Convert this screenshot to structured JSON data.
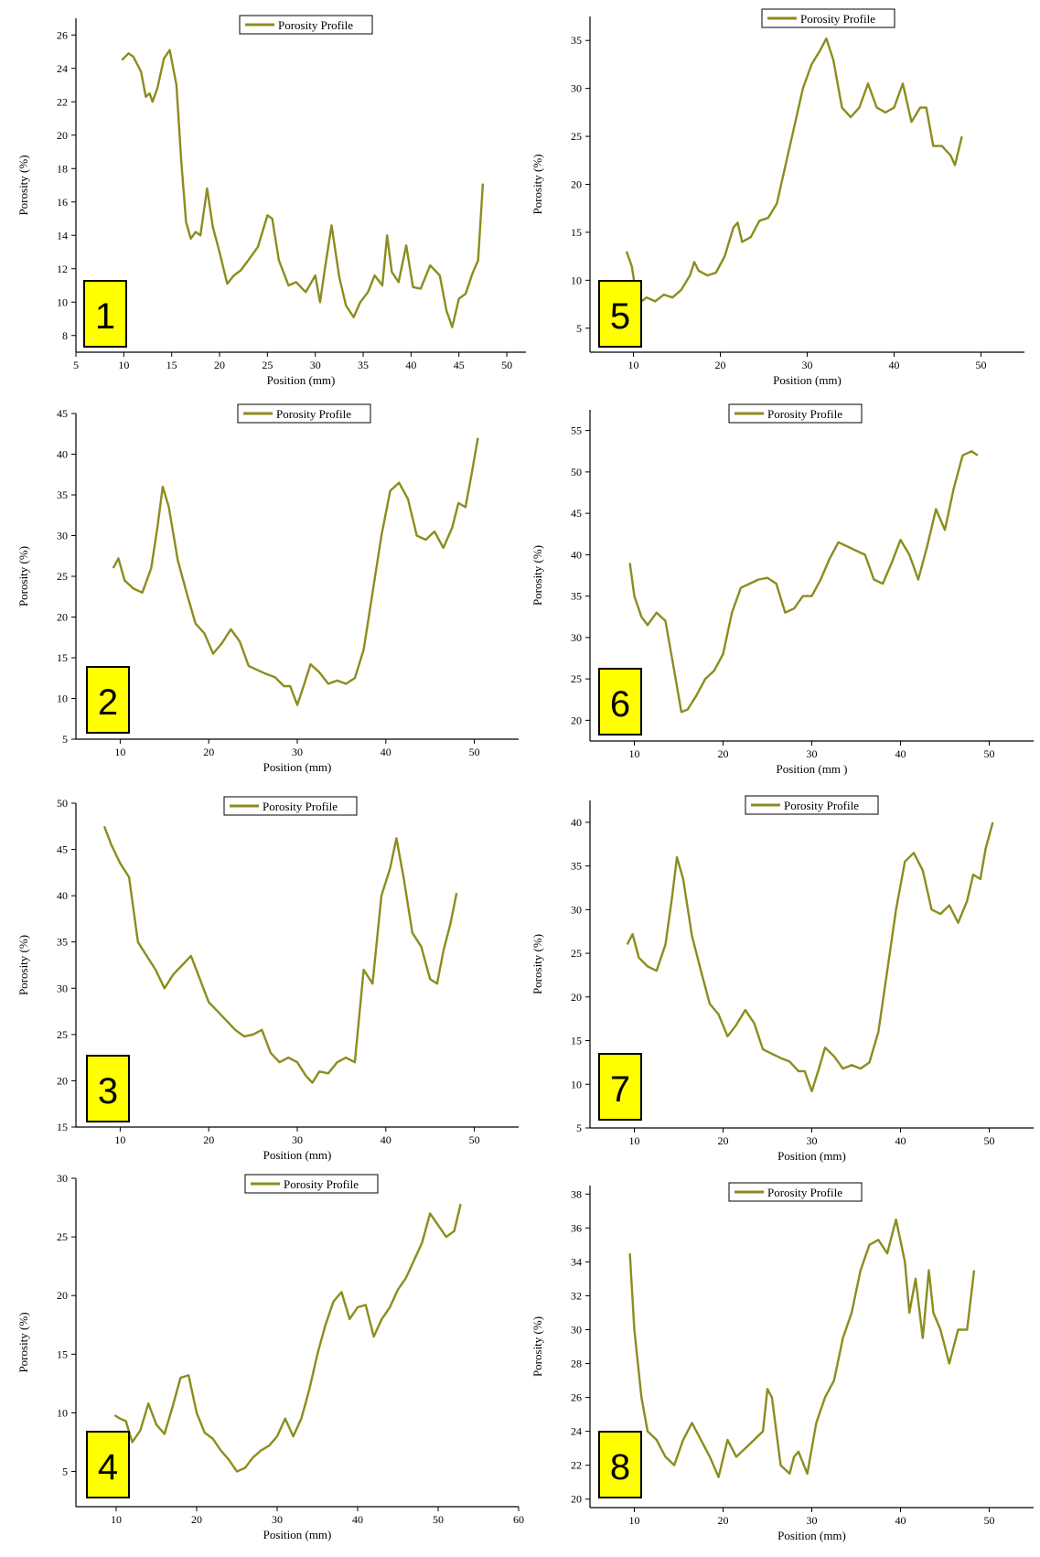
{
  "colors": {
    "line": "#8c8c1e",
    "badge": "#ffff00",
    "axis": "#000000"
  },
  "chart_data": [
    {
      "type": "line",
      "panel_label": "1",
      "xlabel": "Position (mm)",
      "ylabel": "Porosity (%)",
      "xlim": [
        5,
        52
      ],
      "ylim": [
        7,
        27
      ],
      "xticks": [
        5,
        10,
        15,
        20,
        25,
        30,
        35,
        40,
        45,
        50
      ],
      "yticks": [
        8,
        10,
        12,
        14,
        16,
        18,
        20,
        22,
        24,
        26
      ],
      "series": [
        {
          "name": "Porosity Profile",
          "x": [
            9.8,
            10.5,
            11.0,
            11.8,
            12.3,
            12.7,
            13.0,
            13.5,
            14.2,
            14.8,
            15.5,
            16.0,
            16.5,
            17.0,
            17.5,
            18.0,
            18.7,
            19.3,
            20.0,
            20.8,
            21.5,
            22.2,
            23.0,
            24.0,
            25.0,
            25.5,
            26.2,
            27.2,
            28.0,
            29.0,
            30.0,
            30.5,
            31.0,
            31.7,
            32.5,
            33.2,
            34.0,
            34.7,
            35.5,
            36.2,
            37.0,
            37.5,
            38.0,
            38.7,
            39.5,
            40.2,
            41.0,
            42.0,
            43.0,
            43.7,
            44.3,
            45.0,
            45.7,
            46.4,
            47.0,
            47.5
          ],
          "y": [
            24.5,
            24.9,
            24.7,
            23.8,
            22.3,
            22.5,
            22.0,
            22.8,
            24.6,
            25.1,
            23.0,
            18.5,
            14.8,
            13.8,
            14.2,
            14.0,
            16.8,
            14.5,
            13.0,
            11.1,
            11.6,
            11.9,
            12.5,
            13.3,
            15.2,
            15.0,
            12.5,
            11.0,
            11.2,
            10.6,
            11.6,
            10.0,
            12.0,
            14.6,
            11.5,
            9.8,
            9.1,
            10.0,
            10.6,
            11.6,
            11.0,
            14.0,
            11.8,
            11.2,
            13.4,
            10.9,
            10.8,
            12.2,
            11.6,
            9.5,
            8.5,
            10.2,
            10.5,
            11.7,
            12.5,
            17.1
          ]
        }
      ]
    },
    {
      "type": "line",
      "panel_label": "2",
      "xlabel": "Position (mm)",
      "ylabel": "Porosity (%)",
      "xlim": [
        5,
        55
      ],
      "ylim": [
        5,
        45
      ],
      "xticks": [
        10,
        20,
        30,
        40,
        50
      ],
      "yticks": [
        5,
        10,
        15,
        20,
        25,
        30,
        35,
        40,
        45
      ],
      "series": [
        {
          "name": "Porosity Profile",
          "x": [
            9.2,
            9.8,
            10.5,
            11.5,
            12.5,
            13.5,
            14.2,
            14.8,
            15.5,
            16.5,
            17.5,
            18.5,
            19.5,
            20.5,
            21.5,
            22.5,
            23.5,
            24.5,
            25.5,
            26.5,
            27.5,
            28.5,
            29.2,
            30.0,
            30.8,
            31.5,
            32.5,
            33.5,
            34.5,
            35.5,
            36.5,
            37.5,
            38.5,
            39.5,
            40.5,
            41.5,
            42.5,
            43.5,
            44.5,
            45.5,
            46.5,
            47.5,
            48.2,
            49.0,
            49.6,
            50.4
          ],
          "y": [
            26,
            27.2,
            24.5,
            23.5,
            23.0,
            26,
            31,
            36,
            33.5,
            27,
            23,
            19.2,
            18,
            15.5,
            16.8,
            18.5,
            17,
            14,
            13.5,
            13,
            12.6,
            11.5,
            11.5,
            9.2,
            11.8,
            14.2,
            13.2,
            11.8,
            12.2,
            11.8,
            12.5,
            16,
            23,
            30,
            35.5,
            36.5,
            34.5,
            30,
            29.5,
            30.5,
            28.5,
            31,
            34,
            33.5,
            37,
            42
          ]
        }
      ]
    },
    {
      "type": "line",
      "panel_label": "3",
      "xlabel": "Position (mm)",
      "ylabel": "Porosity (%)",
      "xlim": [
        5,
        55
      ],
      "ylim": [
        15,
        50
      ],
      "xticks": [
        10,
        20,
        30,
        40,
        50
      ],
      "yticks": [
        15,
        20,
        25,
        30,
        35,
        40,
        45,
        50
      ],
      "series": [
        {
          "name": "Porosity Profile",
          "x": [
            8.2,
            9.0,
            10.0,
            11.0,
            12.0,
            13.0,
            14.0,
            15.0,
            16.0,
            17.0,
            18.0,
            19.0,
            20.0,
            21.0,
            22.0,
            23.0,
            24.0,
            25.0,
            26.0,
            27.0,
            28.0,
            29.0,
            30.0,
            31.0,
            31.7,
            32.5,
            33.5,
            34.5,
            35.5,
            36.5,
            37.5,
            38.5,
            39.5,
            40.5,
            41.2,
            42.0,
            43.0,
            44.0,
            45.0,
            45.8,
            46.5,
            47.3,
            48.0
          ],
          "y": [
            47.5,
            45.5,
            43.5,
            42,
            35,
            33.5,
            32,
            30,
            31.5,
            32.5,
            33.5,
            31,
            28.5,
            27.5,
            26.5,
            25.5,
            24.8,
            25,
            25.5,
            23,
            22,
            22.5,
            22,
            20.5,
            19.8,
            21,
            20.8,
            22,
            22.5,
            22,
            32,
            30.5,
            40,
            43,
            46.2,
            42,
            36,
            34.5,
            31,
            30.5,
            34,
            37,
            40.3
          ]
        }
      ]
    },
    {
      "type": "line",
      "panel_label": "4",
      "xlabel": "Position (mm)",
      "ylabel": "Porosity (%)",
      "xlim": [
        5,
        60
      ],
      "ylim": [
        2,
        30
      ],
      "xticks": [
        10,
        20,
        30,
        40,
        50,
        60
      ],
      "yticks": [
        5,
        10,
        15,
        20,
        25,
        30
      ],
      "series": [
        {
          "name": "Porosity Profile",
          "x": [
            9.8,
            10.5,
            11.2,
            12.0,
            13.0,
            14.0,
            15.0,
            16.0,
            17.0,
            18.0,
            19.0,
            20.0,
            21.0,
            22.0,
            23.0,
            24.0,
            25.0,
            26.0,
            27.0,
            28.0,
            29.0,
            30.0,
            31.0,
            32.0,
            33.0,
            34.0,
            35.0,
            36.0,
            37.0,
            38.0,
            39.0,
            40.0,
            41.0,
            42.0,
            43.0,
            44.0,
            45.0,
            46.0,
            47.0,
            48.0,
            49.0,
            50.0,
            51.0,
            52.0,
            52.8
          ],
          "y": [
            9.8,
            9.5,
            9.3,
            7.5,
            8.5,
            10.8,
            9.0,
            8.2,
            10.5,
            13.0,
            13.2,
            10.0,
            8.3,
            7.8,
            6.8,
            6.0,
            5.0,
            5.3,
            6.2,
            6.8,
            7.2,
            8.0,
            9.5,
            8.0,
            9.5,
            12,
            15,
            17.5,
            19.5,
            20.3,
            18,
            19,
            19.2,
            16.5,
            18,
            19,
            20.5,
            21.5,
            23,
            24.5,
            27,
            26,
            25,
            25.5,
            27.8
          ]
        }
      ]
    },
    {
      "type": "line",
      "panel_label": "5",
      "xlabel": "Position (mm)",
      "ylabel": "Porosity (%)",
      "xlim": [
        5,
        55
      ],
      "ylim": [
        2.5,
        37.5
      ],
      "xticks": [
        10,
        20,
        30,
        40,
        50
      ],
      "yticks": [
        5,
        10,
        15,
        20,
        25,
        30,
        35
      ],
      "series": [
        {
          "name": "Porosity Profile",
          "x": [
            9.2,
            9.8,
            10.5,
            11.5,
            12.5,
            13.5,
            14.5,
            15.5,
            16.5,
            17.0,
            17.5,
            18.5,
            19.5,
            20.5,
            21.5,
            22.0,
            22.5,
            23.5,
            24.5,
            25.5,
            26.5,
            27.5,
            28.5,
            29.5,
            30.5,
            31.5,
            32.2,
            33.0,
            34.0,
            35.0,
            36.0,
            37.0,
            38.0,
            39.0,
            40.0,
            41.0,
            42.0,
            43.0,
            43.7,
            44.5,
            45.5,
            46.5,
            47.0,
            47.8
          ],
          "y": [
            13,
            11.5,
            7.5,
            8.2,
            7.8,
            8.5,
            8.2,
            9.0,
            10.5,
            11.9,
            11.0,
            10.5,
            10.8,
            12.5,
            15.5,
            16,
            14,
            14.5,
            16.2,
            16.5,
            18,
            22,
            26,
            30,
            32.5,
            34,
            35.2,
            33,
            28,
            27,
            28,
            30.5,
            28,
            27.5,
            28,
            30.5,
            26.5,
            28,
            28,
            24,
            24,
            23,
            22,
            25
          ]
        }
      ]
    },
    {
      "type": "line",
      "panel_label": "6",
      "xlabel": "Position (mm )",
      "ylabel": "Porosity (%)",
      "xlim": [
        5,
        55
      ],
      "ylim": [
        17.5,
        57.5
      ],
      "xticks": [
        10,
        20,
        30,
        40,
        50
      ],
      "yticks": [
        20,
        25,
        30,
        35,
        40,
        45,
        50,
        55
      ],
      "series": [
        {
          "name": "Porosity Profile",
          "x": [
            9.5,
            10.0,
            10.8,
            11.5,
            12.5,
            13.5,
            14.5,
            15.3,
            16.0,
            17.0,
            18.0,
            19.0,
            20.0,
            21.0,
            22.0,
            23.0,
            24.0,
            25.0,
            26.0,
            27.0,
            28.0,
            29.0,
            30.0,
            31.0,
            32.0,
            33.0,
            34.0,
            35.0,
            36.0,
            37.0,
            38.0,
            39.0,
            40.0,
            41.0,
            42.0,
            43.0,
            44.0,
            45.0,
            46.0,
            47.0,
            48.0,
            48.7
          ],
          "y": [
            39,
            35,
            32.5,
            31.5,
            33,
            32,
            26,
            21,
            21.3,
            23,
            25,
            26,
            28,
            33,
            36,
            36.5,
            37,
            37.2,
            36.5,
            33,
            33.5,
            35,
            35,
            37,
            39.5,
            41.5,
            41,
            40.5,
            40,
            37,
            36.5,
            39,
            41.8,
            40,
            37,
            41,
            45.5,
            43,
            48,
            52,
            52.5,
            52
          ]
        }
      ]
    },
    {
      "type": "line",
      "panel_label": "7",
      "xlabel": "Position (mm)",
      "ylabel": "Porosity (%)",
      "xlim": [
        5,
        55
      ],
      "ylim": [
        5,
        42.5
      ],
      "xticks": [
        10,
        20,
        30,
        40,
        50
      ],
      "yticks": [
        5,
        10,
        15,
        20,
        25,
        30,
        35,
        40
      ],
      "series": [
        {
          "name": "Porosity Profile",
          "x": [
            9.2,
            9.8,
            10.5,
            11.5,
            12.5,
            13.5,
            14.2,
            14.8,
            15.5,
            16.5,
            17.5,
            18.5,
            19.5,
            20.5,
            21.5,
            22.5,
            23.5,
            24.5,
            25.5,
            26.5,
            27.5,
            28.5,
            29.2,
            30.0,
            30.8,
            31.5,
            32.5,
            33.5,
            34.5,
            35.5,
            36.5,
            37.5,
            38.5,
            39.5,
            40.5,
            41.5,
            42.5,
            43.5,
            44.5,
            45.5,
            46.5,
            47.5,
            48.2,
            49.0,
            49.6,
            50.4
          ],
          "y": [
            26,
            27.2,
            24.5,
            23.5,
            23.0,
            26,
            31,
            36,
            33.5,
            27,
            23,
            19.2,
            18,
            15.5,
            16.8,
            18.5,
            17,
            14,
            13.5,
            13,
            12.6,
            11.5,
            11.5,
            9.2,
            11.8,
            14.2,
            13.2,
            11.8,
            12.2,
            11.8,
            12.5,
            16,
            23,
            30,
            35.5,
            36.5,
            34.5,
            30,
            29.5,
            30.5,
            28.5,
            31,
            34,
            33.5,
            37,
            40
          ]
        }
      ]
    },
    {
      "type": "line",
      "panel_label": "8",
      "xlabel": "Position (mm)",
      "ylabel": "Porosity (%)",
      "xlim": [
        5,
        55
      ],
      "ylim": [
        19.5,
        38.5
      ],
      "xticks": [
        10,
        20,
        30,
        40,
        50
      ],
      "yticks": [
        20,
        22,
        24,
        26,
        28,
        30,
        32,
        34,
        36,
        38
      ],
      "series": [
        {
          "name": "Porosity Profile",
          "x": [
            9.5,
            10.0,
            10.8,
            11.5,
            12.5,
            13.5,
            14.5,
            15.5,
            16.5,
            17.5,
            18.5,
            19.5,
            20.5,
            21.5,
            22.5,
            23.5,
            24.5,
            25.0,
            25.5,
            26.5,
            27.5,
            28.0,
            28.5,
            29.5,
            30.5,
            31.5,
            32.5,
            33.5,
            34.5,
            35.5,
            36.5,
            37.5,
            38.5,
            39.5,
            40.5,
            41.0,
            41.7,
            42.5,
            43.2,
            43.7,
            44.5,
            45.5,
            46.5,
            47.5,
            48.3
          ],
          "y": [
            34.5,
            30,
            26,
            24,
            23.5,
            22.5,
            22,
            23.5,
            24.5,
            23.5,
            22.5,
            21.3,
            23.5,
            22.5,
            23,
            23.5,
            24,
            26.5,
            26,
            22,
            21.5,
            22.5,
            22.8,
            21.5,
            24.5,
            26,
            27,
            29.5,
            31,
            33.5,
            35,
            35.3,
            34.5,
            36.5,
            34,
            31,
            33,
            29.5,
            33.5,
            31,
            30,
            28,
            30,
            30,
            33.5
          ]
        }
      ]
    }
  ]
}
